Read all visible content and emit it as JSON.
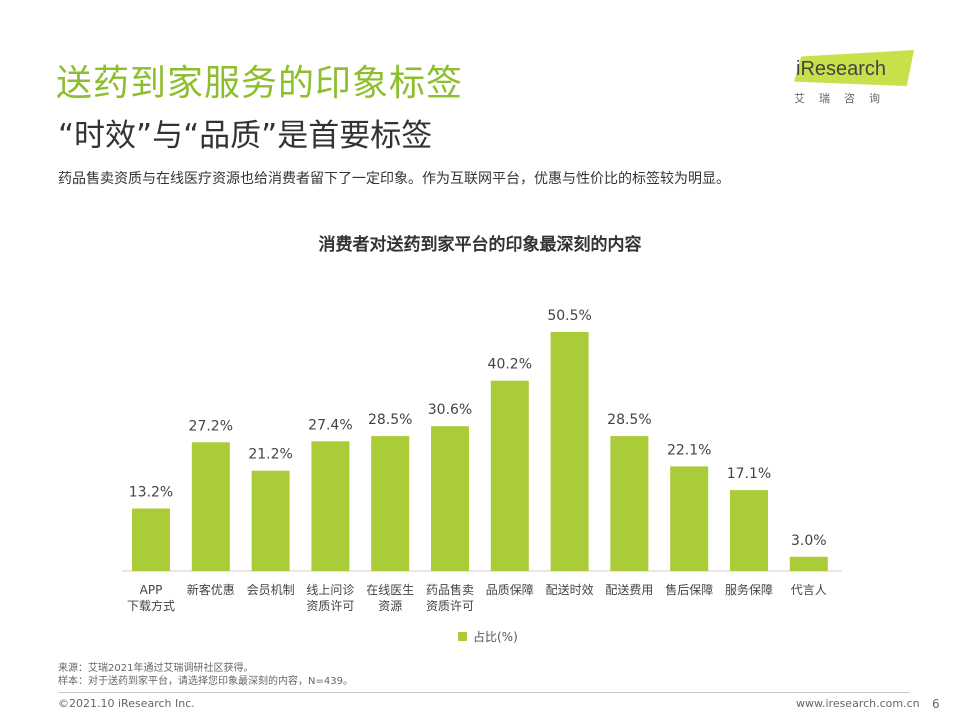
{
  "header": {
    "title": "送药到家服务的印象标签",
    "subtitle": "“时效”与“品质”是首要标签",
    "description": "药品售卖资质与在线医疗资源也给消费者留下了一定印象。作为互联网平台，优惠与性价比的标签较为明显。"
  },
  "logo": {
    "brand": "iResearch",
    "sub": "艾瑞咨询",
    "color": "#c8e04a"
  },
  "chart_data": {
    "type": "bar",
    "title": "消费者对送药到家平台的印象最深刻的内容",
    "categories": [
      [
        "APP",
        "下载方式"
      ],
      [
        "新客优惠"
      ],
      [
        "会员机制"
      ],
      [
        "线上问诊",
        "资质许可"
      ],
      [
        "在线医生",
        "资源"
      ],
      [
        "药品售卖",
        "资质许可"
      ],
      [
        "品质保障"
      ],
      [
        "配送时效"
      ],
      [
        "配送费用"
      ],
      [
        "售后保障"
      ],
      [
        "服务保障"
      ],
      [
        "代言人"
      ]
    ],
    "values": [
      13.2,
      27.2,
      21.2,
      27.4,
      28.5,
      30.6,
      40.2,
      50.5,
      28.5,
      22.1,
      17.1,
      3.0
    ],
    "value_labels": [
      "13.2%",
      "27.2%",
      "21.2%",
      "27.4%",
      "28.5%",
      "30.6%",
      "40.2%",
      "50.5%",
      "28.5%",
      "22.1%",
      "17.1%",
      "3.0%"
    ],
    "series": [
      {
        "name": "占比(%)",
        "color": "#a9cc38"
      }
    ],
    "ylim": [
      0,
      50.5
    ],
    "grid": false,
    "legend": "bottom-center"
  },
  "notes": {
    "source": "来源：艾瑞2021年通过艾瑞调研社区获得。",
    "sample": "样本：对于送药到家平台，请选择您印象最深刻的内容，N=439。"
  },
  "footer": {
    "copyright": "©2021.10 iResearch Inc.",
    "website": "www.iresearch.com.cn",
    "page": "6"
  }
}
